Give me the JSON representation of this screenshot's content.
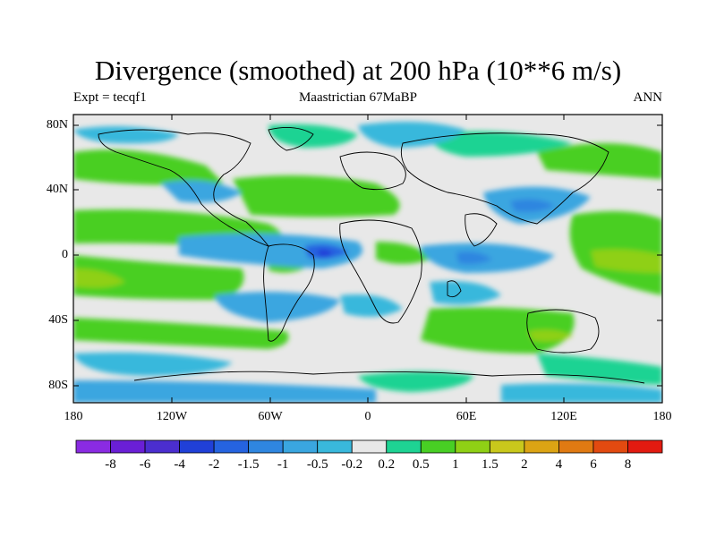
{
  "title": "Divergence (smoothed) at 200 hPa (10**6 m/s)",
  "left_string": "Expt = tecqf1",
  "center_string": "Maastrictian 67MaBP",
  "right_string": "ANN",
  "lat_labels": [
    "80N",
    "40N",
    "0",
    "40S",
    "80S"
  ],
  "lon_labels": [
    "180",
    "120W",
    "60W",
    "0",
    "60E",
    "120E",
    "180"
  ],
  "colorbar": {
    "labels": [
      "-8",
      "-6",
      "-4",
      "-2",
      "-1.5",
      "-1",
      "-0.5",
      "-0.2",
      "0.2",
      "0.5",
      "1",
      "1.5",
      "2",
      "4",
      "6",
      "8"
    ],
    "colors": [
      "#8a2be2",
      "#6a1fd6",
      "#4b2ecf",
      "#2040d8",
      "#2563e0",
      "#2f86e0",
      "#3aa6e0",
      "#39b8dc",
      "#e8e8e8",
      "#1ed393",
      "#48cf24",
      "#8fd015",
      "#c9c81c",
      "#dca414",
      "#e07a12",
      "#e24a10",
      "#e21a10"
    ]
  },
  "colors": {
    "background": "#e8e8e8",
    "coast": "#000000"
  }
}
